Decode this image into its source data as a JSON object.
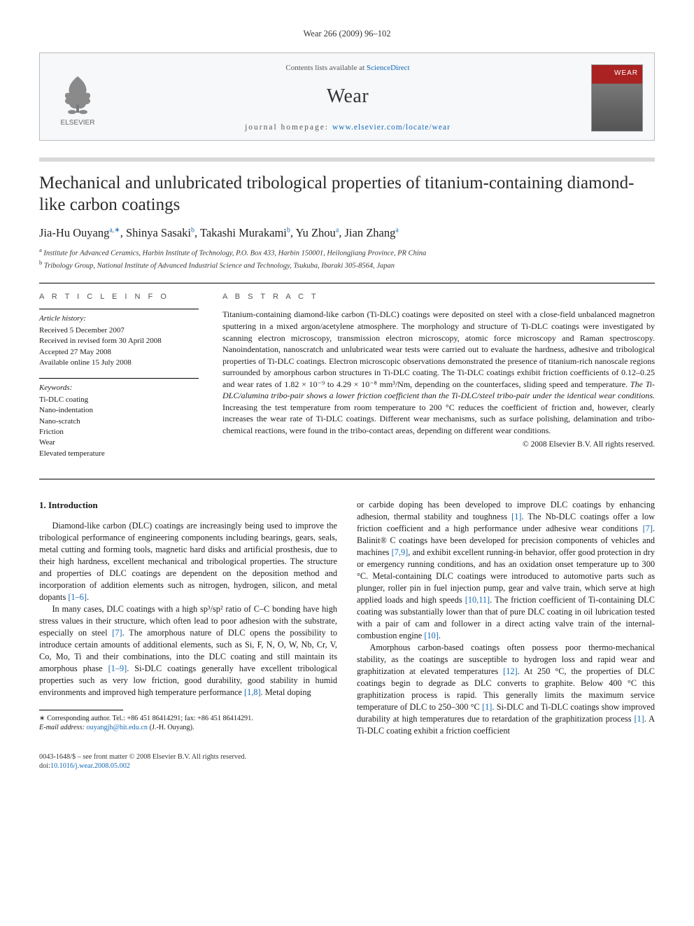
{
  "citation": "Wear 266 (2009) 96–102",
  "header": {
    "contents_prefix": "Contents lists available at ",
    "contents_link": "ScienceDirect",
    "journal": "Wear",
    "homepage_prefix": "journal homepage: ",
    "homepage_link": "www.elsevier.com/locate/wear",
    "publisher_name": "ELSEVIER",
    "cover_label": "WEAR"
  },
  "title": "Mechanical and unlubricated tribological properties of titanium-containing diamond-like carbon coatings",
  "authors_html": "Jia-Hu Ouyang<sup>a,∗</sup>, Shinya Sasaki<sup>b</sup>, Takashi Murakami<sup>b</sup>, Yu Zhou<sup>a</sup>, Jian Zhang<sup>a</sup>",
  "affiliations": {
    "a": "Institute for Advanced Ceramics, Harbin Institute of Technology, P.O. Box 433, Harbin 150001, Heilongjiang Province, PR China",
    "b": "Tribology Group, National Institute of Advanced Industrial Science and Technology, Tsukuba, Ibaraki 305-8564, Japan"
  },
  "info": {
    "heading": "A R T I C L E   I N F O",
    "history_head": "Article history:",
    "history": [
      "Received 5 December 2007",
      "Received in revised form 30 April 2008",
      "Accepted 27 May 2008",
      "Available online 15 July 2008"
    ],
    "keywords_head": "Keywords:",
    "keywords": [
      "Ti-DLC coating",
      "Nano-indentation",
      "Nano-scratch",
      "Friction",
      "Wear",
      "Elevated temperature"
    ]
  },
  "abstract": {
    "heading": "A B S T R A C T",
    "text": "Titanium-containing diamond-like carbon (Ti-DLC) coatings were deposited on steel with a close-field unbalanced magnetron sputtering in a mixed argon/acetylene atmosphere. The morphology and structure of Ti-DLC coatings were investigated by scanning electron microscopy, transmission electron microscopy, atomic force microscopy and Raman spectroscopy. Nanoindentation, nanoscratch and unlubricated wear tests were carried out to evaluate the hardness, adhesive and tribological properties of Ti-DLC coatings. Electron microscopic observations demonstrated the presence of titanium-rich nanoscale regions surrounded by amorphous carbon structures in Ti-DLC coating. The Ti-DLC coatings exhibit friction coefficients of 0.12–0.25 and wear rates of 1.82 × 10⁻⁹ to 4.29 × 10⁻⁸ mm³/Nm, depending on the counterfaces, sliding speed and temperature. The Ti-DLC/alumina tribo-pair shows a lower friction coefficient than the Ti-DLC/steel tribo-pair under the identical wear conditions. Increasing the test temperature from room temperature to 200 °C reduces the coefficient of friction and, however, clearly increases the wear rate of Ti-DLC coatings. Different wear mechanisms, such as surface polishing, delamination and tribo-chemical reactions, were found in the tribo-contact areas, depending on different wear conditions.",
    "copyright": "© 2008 Elsevier B.V. All rights reserved."
  },
  "section1": {
    "heading": "1.  Introduction",
    "p1": "Diamond-like carbon (DLC) coatings are increasingly being used to improve the tribological performance of engineering components including bearings, gears, seals, metal cutting and forming tools, magnetic hard disks and artificial prosthesis, due to their high hardness, excellent mechanical and tribological properties. The structure and properties of DLC coatings are dependent on the deposition method and incorporation of addition elements such as nitrogen, hydrogen, silicon, and metal dopants ",
    "p1_ref": "[1–6]",
    "p1_tail": ".",
    "p2a": "In many cases, DLC coatings with a high sp³/sp² ratio of C–C bonding have high stress values in their structure, which often lead to poor adhesion with the substrate, especially on steel ",
    "p2_ref1": "[7]",
    "p2b": ". The amorphous nature of DLC opens the possibility to introduce certain amounts of additional elements, such as Si, F, N, O, W, Nb, Cr, V, Co, Mo, Ti and their combinations, into the DLC coating and still maintain its amorphous phase ",
    "p2_ref2": "[1–9]",
    "p2c": ". Si-DLC coatings generally have excellent tribological properties such as very low friction, good durability, good stability in humid environments and improved high temperature performance ",
    "p2_ref3": "[1,8]",
    "p2d": ". Metal doping ",
    "p3a": "or carbide doping has been developed to improve DLC coatings by enhancing adhesion, thermal stability and toughness ",
    "p3_ref1": "[1]",
    "p3b": ". The Nb-DLC coatings offer a low friction coefficient and a high performance under adhesive wear conditions ",
    "p3_ref2": "[7]",
    "p3c": ". Balinit® C coatings have been developed for precision components of vehicles and machines ",
    "p3_ref3": "[7,9]",
    "p3d": ", and exhibit excellent running-in behavior, offer good protection in dry or emergency running conditions, and has an oxidation onset temperature up to 300 °C. Metal-containing DLC coatings were introduced to automotive parts such as plunger, roller pin in fuel injection pump, gear and valve train, which serve at high applied loads and high speeds ",
    "p3_ref4": "[10,11]",
    "p3e": ". The friction coefficient of Ti-containing DLC coating was substantially lower than that of pure DLC coating in oil lubrication tested with a pair of cam and follower in a direct acting valve train of the internal-combustion engine ",
    "p3_ref5": "[10]",
    "p3f": ".",
    "p4a": "Amorphous carbon-based coatings often possess poor thermo-mechanical stability, as the coatings are susceptible to hydrogen loss and rapid wear and graphitization at elevated temperatures ",
    "p4_ref1": "[12]",
    "p4b": ". At 250 °C, the properties of DLC coatings begin to degrade as DLC converts to graphite. Below 400 °C this graphitization process is rapid. This generally limits the maximum service temperature of DLC to 250–300 °C ",
    "p4_ref2": "[1]",
    "p4c": ". Si-DLC and Ti-DLC coatings show improved durability at high temperatures due to retardation of the graphitization process ",
    "p4_ref3": "[1]",
    "p4d": ". A Ti-DLC coating exhibit a friction coefficient"
  },
  "footnote": {
    "corr": "∗ Corresponding author. Tel.: +86 451 86414291; fax: +86 451 86414291.",
    "email_label": "E-mail address: ",
    "email": "ouyangjh@hit.edu.cn",
    "email_tail": " (J.-H. Ouyang)."
  },
  "bottom": {
    "left1": "0043-1648/$ – see front matter © 2008 Elsevier B.V. All rights reserved.",
    "left2_prefix": "doi:",
    "left2_link": "10.1016/j.wear.2008.05.002"
  },
  "colors": {
    "link": "#1768b3",
    "band": "#d9d9d9",
    "header_bg": "#f6f8fa",
    "cover_top": "#a22222"
  }
}
